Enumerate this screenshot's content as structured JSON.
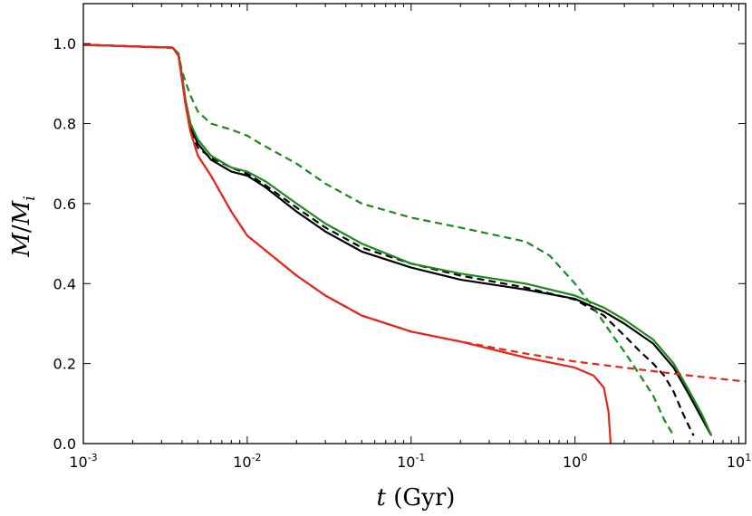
{
  "chart_data": {
    "type": "line",
    "title": "",
    "xscale": "log",
    "xlim": [
      0.001,
      11
    ],
    "ylim": [
      0.0,
      1.1
    ],
    "xlabel": {
      "var": "t",
      "unit": "(Gyr)"
    },
    "ylabel": {
      "num": "M",
      "den": "M",
      "sub": "i"
    },
    "x_ticks": [
      {
        "value": 0.001,
        "base": "10",
        "exp": "-3"
      },
      {
        "value": 0.01,
        "base": "10",
        "exp": "-2"
      },
      {
        "value": 0.1,
        "base": "10",
        "exp": "-1"
      },
      {
        "value": 1,
        "base": "10",
        "exp": "0"
      },
      {
        "value": 10,
        "base": "10",
        "exp": "1"
      }
    ],
    "y_ticks": [
      {
        "value": 0.0,
        "label": "0.0"
      },
      {
        "value": 0.2,
        "label": "0.2"
      },
      {
        "value": 0.4,
        "label": "0.4"
      },
      {
        "value": 0.6,
        "label": "0.6"
      },
      {
        "value": 0.8,
        "label": "0.8"
      },
      {
        "value": 1.0,
        "label": "1.0"
      }
    ],
    "series": [
      {
        "name": "black-solid",
        "color": "#000000",
        "dash": "solid",
        "points": [
          [
            0.001,
            0.997
          ],
          [
            0.0035,
            0.99
          ],
          [
            0.0038,
            0.975
          ],
          [
            0.004,
            0.92
          ],
          [
            0.0042,
            0.85
          ],
          [
            0.0045,
            0.79
          ],
          [
            0.005,
            0.75
          ],
          [
            0.006,
            0.71
          ],
          [
            0.008,
            0.68
          ],
          [
            0.01,
            0.67
          ],
          [
            0.013,
            0.64
          ],
          [
            0.02,
            0.58
          ],
          [
            0.03,
            0.53
          ],
          [
            0.05,
            0.48
          ],
          [
            0.1,
            0.44
          ],
          [
            0.2,
            0.41
          ],
          [
            0.5,
            0.385
          ],
          [
            1,
            0.362
          ],
          [
            1.5,
            0.33
          ],
          [
            2,
            0.3
          ],
          [
            3,
            0.25
          ],
          [
            4,
            0.19
          ],
          [
            5,
            0.12
          ],
          [
            6,
            0.06
          ],
          [
            6.8,
            0.02
          ]
        ]
      },
      {
        "name": "black-dashed",
        "color": "#000000",
        "dash": "8,5",
        "points": [
          [
            0.001,
            0.997
          ],
          [
            0.0035,
            0.99
          ],
          [
            0.0038,
            0.975
          ],
          [
            0.004,
            0.92
          ],
          [
            0.0042,
            0.85
          ],
          [
            0.0045,
            0.78
          ],
          [
            0.005,
            0.74
          ],
          [
            0.006,
            0.715
          ],
          [
            0.008,
            0.69
          ],
          [
            0.01,
            0.675
          ],
          [
            0.013,
            0.645
          ],
          [
            0.02,
            0.59
          ],
          [
            0.03,
            0.54
          ],
          [
            0.05,
            0.49
          ],
          [
            0.1,
            0.45
          ],
          [
            0.2,
            0.42
          ],
          [
            0.5,
            0.39
          ],
          [
            1,
            0.36
          ],
          [
            1.5,
            0.32
          ],
          [
            2,
            0.27
          ],
          [
            2.5,
            0.23
          ],
          [
            3,
            0.2
          ],
          [
            3.5,
            0.17
          ],
          [
            4,
            0.13
          ],
          [
            4.5,
            0.08
          ],
          [
            5,
            0.04
          ],
          [
            5.3,
            0.02
          ]
        ]
      },
      {
        "name": "green-solid",
        "color": "#1b8a1b",
        "dash": "solid",
        "points": [
          [
            0.001,
            0.997
          ],
          [
            0.0035,
            0.99
          ],
          [
            0.0038,
            0.975
          ],
          [
            0.004,
            0.92
          ],
          [
            0.0042,
            0.86
          ],
          [
            0.0045,
            0.8
          ],
          [
            0.005,
            0.76
          ],
          [
            0.006,
            0.72
          ],
          [
            0.008,
            0.69
          ],
          [
            0.01,
            0.68
          ],
          [
            0.013,
            0.655
          ],
          [
            0.02,
            0.6
          ],
          [
            0.03,
            0.55
          ],
          [
            0.05,
            0.5
          ],
          [
            0.1,
            0.45
          ],
          [
            0.2,
            0.425
          ],
          [
            0.5,
            0.4
          ],
          [
            1,
            0.37
          ],
          [
            1.5,
            0.34
          ],
          [
            2,
            0.31
          ],
          [
            3,
            0.26
          ],
          [
            4,
            0.2
          ],
          [
            5,
            0.13
          ],
          [
            6,
            0.07
          ],
          [
            6.8,
            0.02
          ]
        ]
      },
      {
        "name": "green-dashed",
        "color": "#1b8a1b",
        "dash": "8,5",
        "points": [
          [
            0.001,
            0.997
          ],
          [
            0.0035,
            0.99
          ],
          [
            0.0038,
            0.975
          ],
          [
            0.004,
            0.93
          ],
          [
            0.0045,
            0.87
          ],
          [
            0.005,
            0.83
          ],
          [
            0.006,
            0.8
          ],
          [
            0.008,
            0.785
          ],
          [
            0.01,
            0.77
          ],
          [
            0.012,
            0.75
          ],
          [
            0.02,
            0.7
          ],
          [
            0.03,
            0.65
          ],
          [
            0.05,
            0.6
          ],
          [
            0.1,
            0.565
          ],
          [
            0.2,
            0.54
          ],
          [
            0.5,
            0.505
          ],
          [
            0.7,
            0.47
          ],
          [
            1,
            0.4
          ],
          [
            1.3,
            0.34
          ],
          [
            1.7,
            0.27
          ],
          [
            2,
            0.23
          ],
          [
            2.5,
            0.17
          ],
          [
            3,
            0.12
          ],
          [
            3.5,
            0.06
          ],
          [
            4,
            0.02
          ]
        ]
      },
      {
        "name": "red-solid",
        "color": "#e8251b",
        "dash": "solid",
        "points": [
          [
            0.001,
            0.997
          ],
          [
            0.0035,
            0.99
          ],
          [
            0.0038,
            0.97
          ],
          [
            0.004,
            0.91
          ],
          [
            0.0042,
            0.85
          ],
          [
            0.0045,
            0.78
          ],
          [
            0.005,
            0.72
          ],
          [
            0.006,
            0.67
          ],
          [
            0.008,
            0.58
          ],
          [
            0.01,
            0.52
          ],
          [
            0.02,
            0.42
          ],
          [
            0.03,
            0.37
          ],
          [
            0.05,
            0.32
          ],
          [
            0.1,
            0.28
          ],
          [
            0.2,
            0.255
          ],
          [
            0.5,
            0.215
          ],
          [
            1,
            0.19
          ],
          [
            1.3,
            0.17
          ],
          [
            1.5,
            0.14
          ],
          [
            1.6,
            0.08
          ],
          [
            1.65,
            0.0
          ]
        ]
      },
      {
        "name": "red-dashed",
        "color": "#e8251b",
        "dash": "8,5",
        "points": [
          [
            0.001,
            0.997
          ],
          [
            0.0035,
            0.99
          ],
          [
            0.0038,
            0.97
          ],
          [
            0.004,
            0.91
          ],
          [
            0.0042,
            0.85
          ],
          [
            0.0045,
            0.78
          ],
          [
            0.005,
            0.72
          ],
          [
            0.006,
            0.67
          ],
          [
            0.008,
            0.58
          ],
          [
            0.01,
            0.52
          ],
          [
            0.02,
            0.42
          ],
          [
            0.03,
            0.37
          ],
          [
            0.05,
            0.32
          ],
          [
            0.1,
            0.28
          ],
          [
            0.2,
            0.255
          ],
          [
            0.5,
            0.225
          ],
          [
            1,
            0.205
          ],
          [
            2,
            0.19
          ],
          [
            5,
            0.17
          ],
          [
            11,
            0.155
          ]
        ]
      }
    ]
  }
}
